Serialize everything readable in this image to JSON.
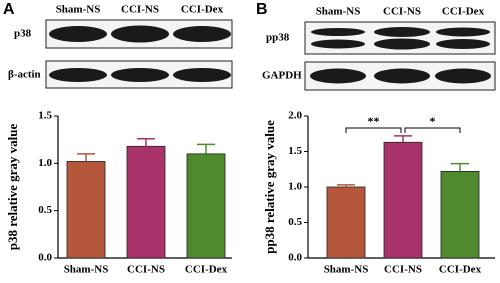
{
  "chart_data": [
    {
      "type": "bar",
      "panel": "A",
      "blot_labels": [
        "p38",
        "β-actin"
      ],
      "ylabel": "p38 relative gray value",
      "categories": [
        "Sham-NS",
        "CCI-NS",
        "CCI-Dex"
      ],
      "values": [
        1.02,
        1.18,
        1.1
      ],
      "errors": [
        0.08,
        0.08,
        0.1
      ],
      "colors": [
        "#b5573a",
        "#a8336b",
        "#4f8a2e"
      ],
      "ylim": [
        0,
        1.5
      ],
      "yticks": [
        {
          "value": 0,
          "label": "0.0"
        },
        0.5,
        {
          "value": 1,
          "label": "1.0"
        },
        1.5
      ]
    },
    {
      "type": "bar",
      "panel": "B",
      "blot_labels": [
        "pp38",
        "GAPDH"
      ],
      "ylabel": "pp38 relative gray value",
      "categories": [
        "Sham-NS",
        "CCI-NS",
        "CCI-Dex"
      ],
      "values": [
        1.0,
        1.63,
        1.22
      ],
      "errors": [
        0.03,
        0.09,
        0.11
      ],
      "colors": [
        "#b5573a",
        "#a8336b",
        "#4f8a2e"
      ],
      "ylim": [
        0,
        2.0
      ],
      "yticks": [
        {
          "value": 0,
          "label": "0.0"
        },
        0.5,
        {
          "value": 1,
          "label": "1.0"
        },
        1.5,
        {
          "value": 2,
          "label": "2.0"
        }
      ],
      "annotations": [
        {
          "text": "**",
          "between": [
            "Sham-NS",
            "CCI-NS"
          ]
        },
        {
          "text": "*",
          "between": [
            "CCI-NS",
            "CCI-Dex"
          ]
        }
      ]
    }
  ]
}
